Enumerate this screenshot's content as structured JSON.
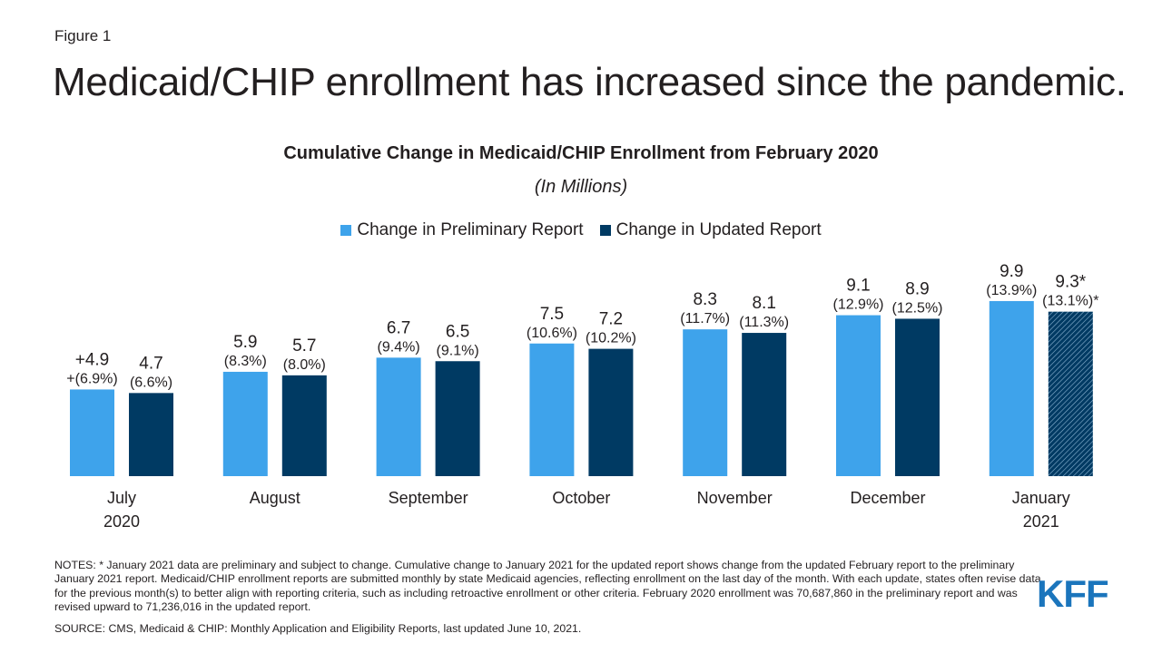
{
  "figure_label": "Figure 1",
  "headline": "Medicaid/CHIP enrollment has increased since the pandemic.",
  "colors": {
    "preliminary": "#3ea3eb",
    "updated": "#003a63",
    "text": "#231f20",
    "logo": "#1b75bc"
  },
  "chart_data": {
    "type": "bar",
    "title": "Cumulative Change in Medicaid/CHIP Enrollment from February 2020",
    "subtitle": "(In Millions)",
    "categories": [
      [
        "July",
        "2020"
      ],
      [
        "August"
      ],
      [
        "September"
      ],
      [
        "October"
      ],
      [
        "November"
      ],
      [
        "December"
      ],
      [
        "January",
        "2021"
      ]
    ],
    "series": [
      {
        "name": "Change in Preliminary Report",
        "values": [
          4.9,
          5.9,
          6.7,
          7.5,
          8.3,
          9.1,
          9.9
        ],
        "value_labels": [
          "+4.9",
          "5.9",
          "6.7",
          "7.5",
          "8.3",
          "9.1",
          "9.9"
        ],
        "pct_labels": [
          "+(6.9%)",
          "(8.3%)",
          "(9.4%)",
          "(10.6%)",
          "(11.7%)",
          "(12.9%)",
          "(13.9%)"
        ]
      },
      {
        "name": "Change in Updated Report",
        "values": [
          4.7,
          5.7,
          6.5,
          7.2,
          8.1,
          8.9,
          9.3
        ],
        "value_labels": [
          "4.7",
          "5.7",
          "6.5",
          "7.2",
          "8.1",
          "8.9",
          "9.3*"
        ],
        "pct_labels": [
          "(6.6%)",
          "(8.0%)",
          "(9.1%)",
          "(10.2%)",
          "(11.3%)",
          "(12.5%)",
          "(13.1%)*"
        ],
        "hatched_indices": [
          6
        ]
      }
    ],
    "legend_position": "top-center",
    "grid": false,
    "axes_visible": false
  },
  "notes": "NOTES: * January 2021 data are preliminary and subject to change. Cumulative change to January 2021 for the updated report shows change from the updated February report to the preliminary January 2021 report. Medicaid/CHIP enrollment reports are submitted monthly by state Medicaid agencies, reflecting enrollment on the last day of the month. With each update, states often revise data for the previous month(s) to better align with reporting criteria, such as including retroactive enrollment or other criteria. February 2020 enrollment was 70,687,860 in the preliminary report and was revised upward to 71,236,016 in the updated report.",
  "source": "SOURCE: CMS, Medicaid & CHIP: Monthly Application and Eligibility Reports, last updated June 10, 2021.",
  "logo_text": "KFF"
}
